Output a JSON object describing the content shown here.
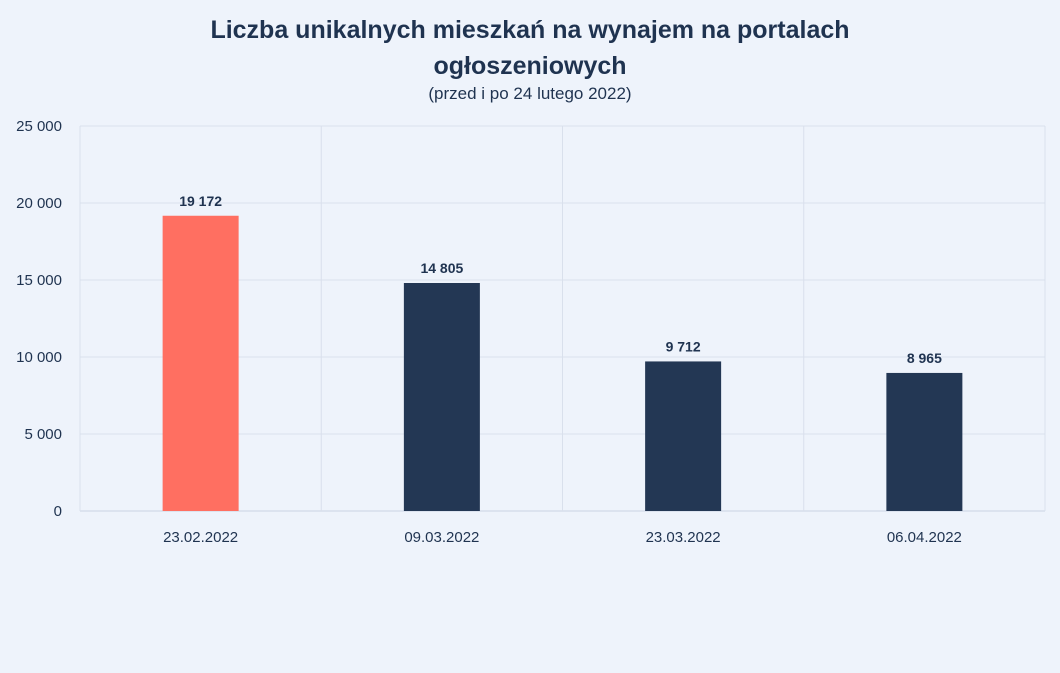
{
  "chart_data": {
    "type": "bar",
    "title": "Liczba unikalnych mieszkań na wynajem na portalach ogłoszeniowych",
    "subtitle": "(przed i po 24 lutego 2022)",
    "categories": [
      "23.02.2022",
      "09.03.2022",
      "23.03.2022",
      "06.04.2022"
    ],
    "values": [
      19172,
      14805,
      9712,
      8965
    ],
    "data_labels": [
      "19 172",
      "14 805",
      "9 712",
      "8 965"
    ],
    "bar_colors": [
      "#ff6f61",
      "#233754",
      "#233754",
      "#233754"
    ],
    "ylim": [
      0,
      25000
    ],
    "yticks": [
      0,
      5000,
      10000,
      15000,
      20000,
      25000
    ],
    "ytick_labels": [
      "0",
      "5 000",
      "10 000",
      "15 000",
      "20 000",
      "25 000"
    ],
    "grid": true,
    "legend": "none"
  }
}
